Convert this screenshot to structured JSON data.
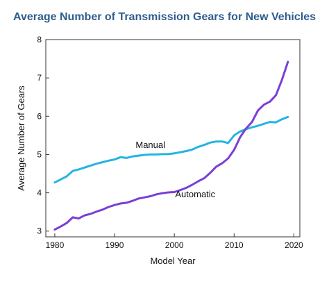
{
  "chart_data": {
    "type": "line",
    "title": "Average Number of Transmission Gears for New Vehicles",
    "xlabel": "Model Year",
    "ylabel": "Average Number of Gears",
    "xlim": [
      1978.5,
      2021
    ],
    "ylim": [
      2.85,
      8
    ],
    "xticks": [
      1980,
      1990,
      2000,
      2010,
      2020
    ],
    "yticks": [
      3,
      4,
      5,
      6,
      7,
      8
    ],
    "grid": false,
    "legend": "none",
    "series": [
      {
        "name": "Manual",
        "color": "#25b4e0",
        "x": [
          1980,
          1981,
          1982,
          1983,
          1984,
          1985,
          1986,
          1987,
          1988,
          1989,
          1990,
          1991,
          1992,
          1993,
          1994,
          1995,
          1996,
          1997,
          1998,
          1999,
          2000,
          2001,
          2002,
          2003,
          2004,
          2005,
          2006,
          2007,
          2008,
          2009,
          2010,
          2011,
          2012,
          2013,
          2014,
          2015,
          2016,
          2017,
          2018,
          2019
        ],
        "y": [
          4.27,
          4.35,
          4.43,
          4.57,
          4.61,
          4.66,
          4.71,
          4.76,
          4.8,
          4.84,
          4.87,
          4.93,
          4.91,
          4.95,
          4.97,
          4.99,
          5.0,
          5.0,
          5.01,
          5.01,
          5.03,
          5.06,
          5.09,
          5.13,
          5.2,
          5.25,
          5.31,
          5.34,
          5.34,
          5.3,
          5.5,
          5.6,
          5.66,
          5.71,
          5.75,
          5.8,
          5.85,
          5.84,
          5.92,
          5.98
        ]
      },
      {
        "name": "Automatic",
        "color": "#7a3fd6",
        "x": [
          1980,
          1981,
          1982,
          1983,
          1984,
          1985,
          1986,
          1987,
          1988,
          1989,
          1990,
          1991,
          1992,
          1993,
          1994,
          1995,
          1996,
          1997,
          1998,
          1999,
          2000,
          2001,
          2002,
          2003,
          2004,
          2005,
          2006,
          2007,
          2008,
          2009,
          2010,
          2011,
          2012,
          2013,
          2014,
          2015,
          2016,
          2017,
          2018,
          2019
        ],
        "y": [
          3.04,
          3.12,
          3.21,
          3.36,
          3.33,
          3.41,
          3.45,
          3.51,
          3.56,
          3.63,
          3.68,
          3.72,
          3.74,
          3.79,
          3.85,
          3.88,
          3.91,
          3.96,
          3.99,
          4.01,
          4.02,
          4.07,
          4.13,
          4.21,
          4.3,
          4.38,
          4.52,
          4.68,
          4.77,
          4.9,
          5.12,
          5.45,
          5.68,
          5.85,
          6.15,
          6.3,
          6.38,
          6.55,
          6.95,
          7.42
        ]
      }
    ],
    "annotations": [
      {
        "text": "Manual",
        "x": 1996,
        "y": 5.17
      },
      {
        "text": "Automatic",
        "x": 2003.5,
        "y": 3.88
      }
    ]
  }
}
